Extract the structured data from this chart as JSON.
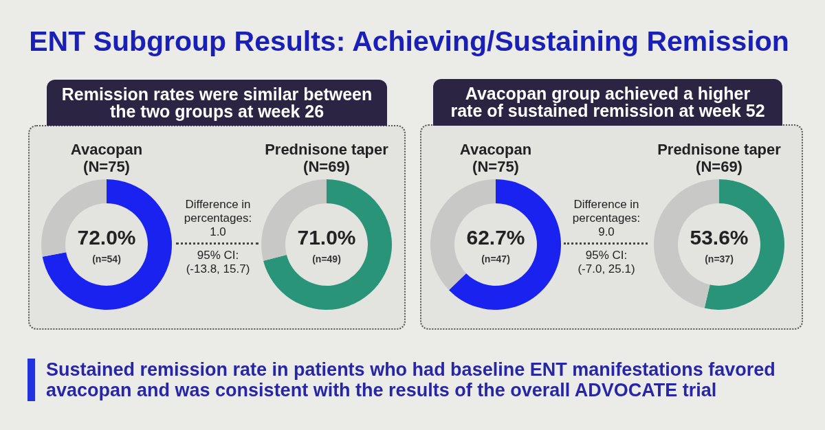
{
  "chart_data": [
    {
      "type": "other",
      "title": "ENT Subgroup Results: Achieving/Sustaining Remission",
      "annotations": [
        "Remission rates were similar between\nthe two groups at week 26",
        "Difference in\npercentages:\n1.0",
        "95% CI:\n(-13.8, 15.7)",
        "Avacopan group achieved a higher\nrate of sustained remission at week 52",
        "Difference in\npercentages:\n9.0",
        "95% CI:\n(-7.0, 25.1)",
        "Sustained remission rate in patients who had baseline ENT manifestations favored\navacopan and was consistent with the results of the overall ADVOCATE trial"
      ]
    },
    {
      "type": "donut",
      "title": "Avacopan\n(N=75)",
      "categories": [
        null,
        null
      ],
      "values": [
        72.0,
        28.0
      ],
      "colors": [
        "#1a22f0",
        "#c8c8c6"
      ],
      "annotations": [
        "72.0%",
        "(n=54)"
      ]
    },
    {
      "type": "donut",
      "title": "Prednisone taper\n(N=69)",
      "categories": [
        null,
        null
      ],
      "values": [
        71.0,
        29.0
      ],
      "colors": [
        "#2a9478",
        "#c8c8c6"
      ],
      "annotations": [
        "71.0%",
        "(n=49)"
      ]
    },
    {
      "type": "donut",
      "title": "Avacopan\n(N=75)",
      "categories": [
        null,
        null
      ],
      "values": [
        62.7,
        37.3
      ],
      "colors": [
        "#1a22f0",
        "#c8c8c6"
      ],
      "annotations": [
        "62.7%",
        "(n=47)"
      ]
    },
    {
      "type": "donut",
      "title": "Prednisone taper\n(N=69)",
      "categories": [
        null,
        null
      ],
      "values": [
        53.6,
        46.4
      ],
      "colors": [
        "#2a9478",
        "#c8c8c6"
      ],
      "annotations": [
        "53.6%",
        "(n=37)"
      ]
    }
  ]
}
